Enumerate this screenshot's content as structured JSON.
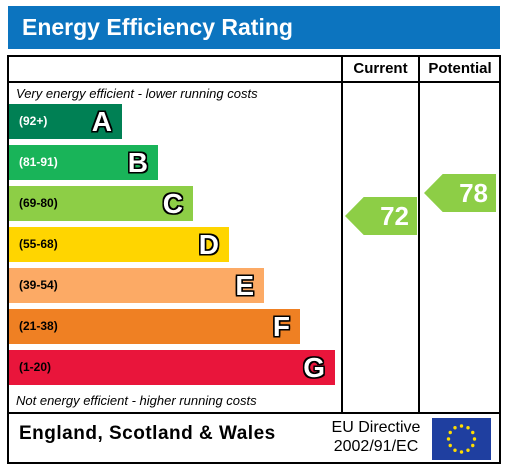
{
  "title": "Energy Efficiency Rating",
  "columns": {
    "current": "Current",
    "potential": "Potential"
  },
  "captions": {
    "top": "Very energy efficient - lower running costs",
    "bottom": "Not energy efficient - higher running costs"
  },
  "footer": {
    "region": "England, Scotland & Wales",
    "directive_line1": "EU Directive",
    "directive_line2": "2002/91/EC",
    "flag_icon": "eu-flag-icon"
  },
  "chart_data": {
    "type": "bar",
    "bands": [
      {
        "letter": "A",
        "range": "(92+)",
        "color": "#008054"
      },
      {
        "letter": "B",
        "range": "(81-91)",
        "color": "#19b459"
      },
      {
        "letter": "C",
        "range": "(69-80)",
        "color": "#8dce46"
      },
      {
        "letter": "D",
        "range": "(55-68)",
        "color": "#ffd500"
      },
      {
        "letter": "E",
        "range": "(39-54)",
        "color": "#fcaa65"
      },
      {
        "letter": "F",
        "range": "(21-38)",
        "color": "#ef8023"
      },
      {
        "letter": "G",
        "range": "(1-20)",
        "color": "#e9153b"
      }
    ],
    "current": {
      "value": 72,
      "band": "C",
      "color": "#8dce46"
    },
    "potential": {
      "value": 78,
      "band": "C",
      "color": "#8dce46"
    }
  }
}
